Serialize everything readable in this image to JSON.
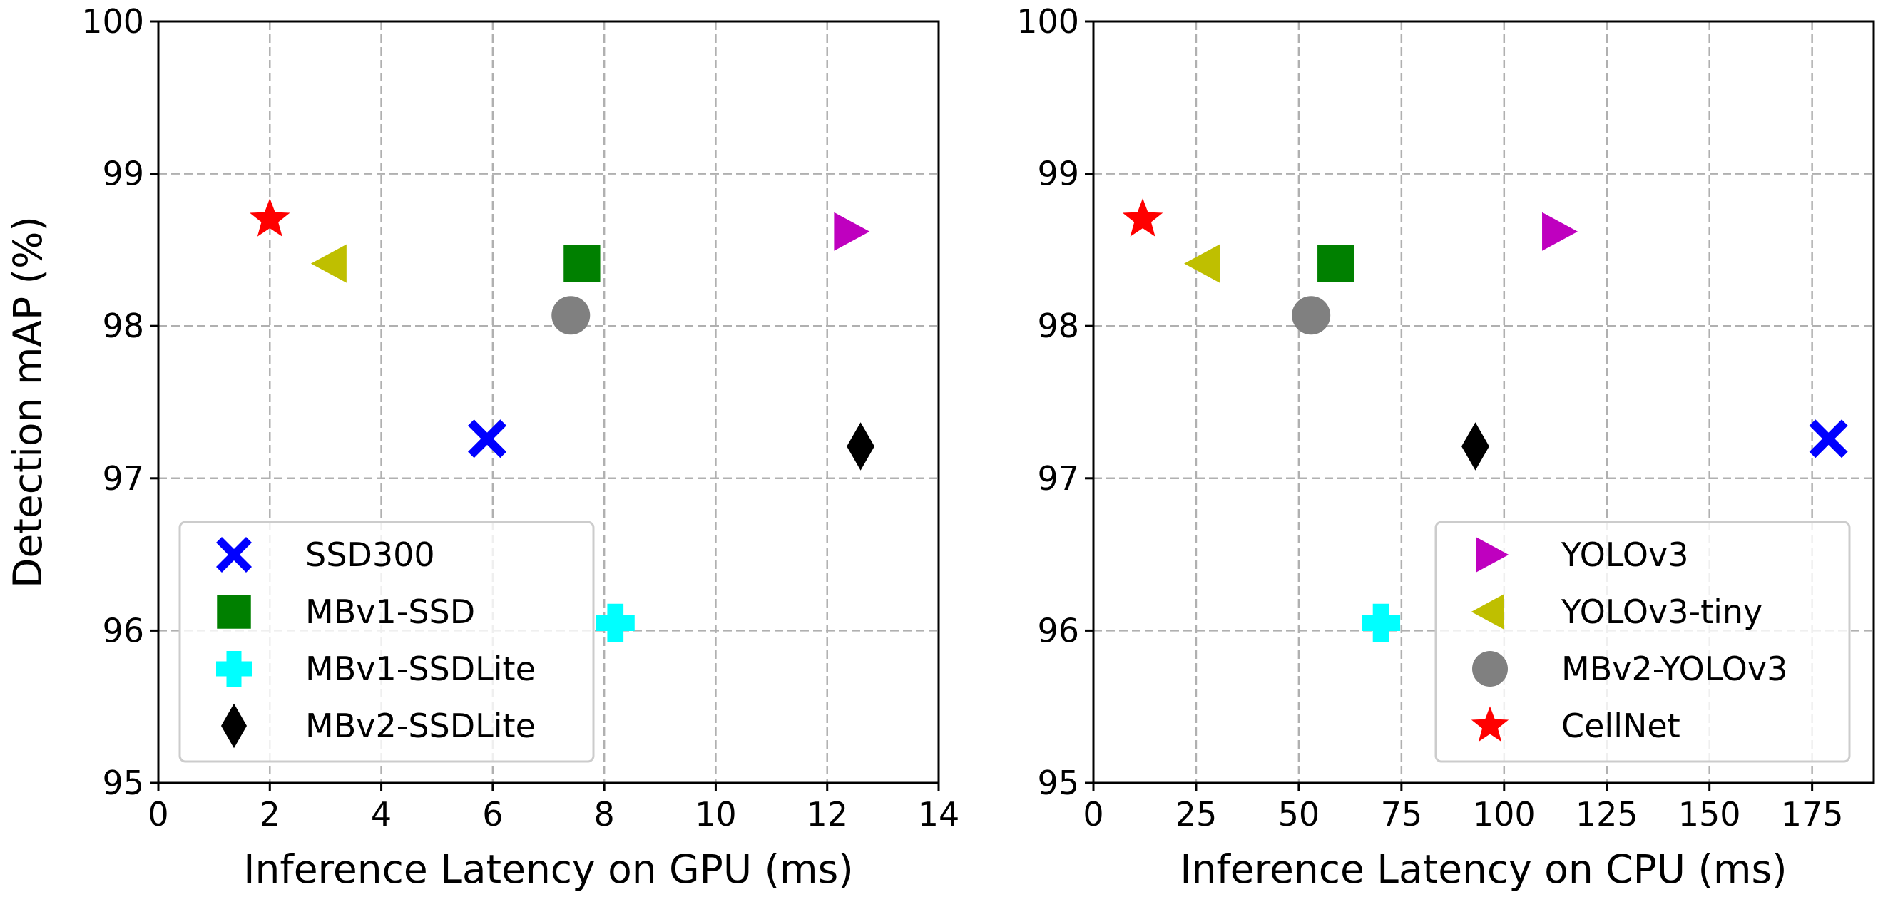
{
  "chart_data": [
    {
      "type": "scatter",
      "title": "",
      "xlabel": "Inference Latency on GPU (ms)",
      "ylabel": "Detection mAP (%)",
      "xlim": [
        0,
        14
      ],
      "ylim": [
        95,
        100
      ],
      "xticks": [
        "0",
        "2",
        "4",
        "6",
        "8",
        "10",
        "12",
        "14"
      ],
      "yticks": [
        "95",
        "96",
        "97",
        "98",
        "99",
        "100"
      ],
      "grid": true,
      "legend_position": "lower-left",
      "legend_items": [
        "SSD300",
        "MBv1-SSD",
        "MBv1-SSDLite",
        "MBv2-SSDLite"
      ],
      "series": [
        {
          "name": "SSD300",
          "marker": "X",
          "color": "#0000ff",
          "x": 5.9,
          "y": 97.26
        },
        {
          "name": "MBv1-SSD",
          "marker": "square",
          "color": "#008000",
          "x": 7.6,
          "y": 98.41
        },
        {
          "name": "MBv1-SSDLite",
          "marker": "plus",
          "color": "#00ffff",
          "x": 8.2,
          "y": 96.05
        },
        {
          "name": "MBv2-SSDLite",
          "marker": "diamond",
          "color": "#000000",
          "x": 12.6,
          "y": 97.21
        },
        {
          "name": "YOLOv3",
          "marker": "triangle-right",
          "color": "#bf00bf",
          "x": 12.4,
          "y": 98.62
        },
        {
          "name": "YOLOv3-tiny",
          "marker": "triangle-left",
          "color": "#bfbf00",
          "x": 3.1,
          "y": 98.41
        },
        {
          "name": "MBv2-YOLOv3",
          "marker": "circle",
          "color": "#808080",
          "x": 7.4,
          "y": 98.07
        },
        {
          "name": "CellNet",
          "marker": "star",
          "color": "#ff0000",
          "x": 2.0,
          "y": 98.7
        }
      ]
    },
    {
      "type": "scatter",
      "title": "",
      "xlabel": "Inference Latency on CPU (ms)",
      "ylabel": "",
      "xlim": [
        0,
        190
      ],
      "ylim": [
        95,
        100
      ],
      "xticks": [
        "0",
        "25",
        "50",
        "75",
        "100",
        "125",
        "150",
        "175"
      ],
      "yticks": [
        "95",
        "96",
        "97",
        "98",
        "99",
        "100"
      ],
      "grid": true,
      "legend_position": "lower-right",
      "legend_items": [
        "YOLOv3",
        "YOLOv3-tiny",
        "MBv2-YOLOv3",
        "CellNet"
      ],
      "series": [
        {
          "name": "SSD300",
          "marker": "X",
          "color": "#0000ff",
          "x": 179,
          "y": 97.26
        },
        {
          "name": "MBv1-SSD",
          "marker": "square",
          "color": "#008000",
          "x": 59,
          "y": 98.41
        },
        {
          "name": "MBv1-SSDLite",
          "marker": "plus",
          "color": "#00ffff",
          "x": 70,
          "y": 96.05
        },
        {
          "name": "MBv2-SSDLite",
          "marker": "diamond",
          "color": "#000000",
          "x": 93,
          "y": 97.21
        },
        {
          "name": "YOLOv3",
          "marker": "triangle-right",
          "color": "#bf00bf",
          "x": 113,
          "y": 98.62
        },
        {
          "name": "YOLOv3-tiny",
          "marker": "triangle-left",
          "color": "#bfbf00",
          "x": 27,
          "y": 98.41
        },
        {
          "name": "MBv2-YOLOv3",
          "marker": "circle",
          "color": "#808080",
          "x": 53,
          "y": 98.07
        },
        {
          "name": "CellNet",
          "marker": "star",
          "color": "#ff0000",
          "x": 12,
          "y": 98.7
        }
      ]
    }
  ]
}
